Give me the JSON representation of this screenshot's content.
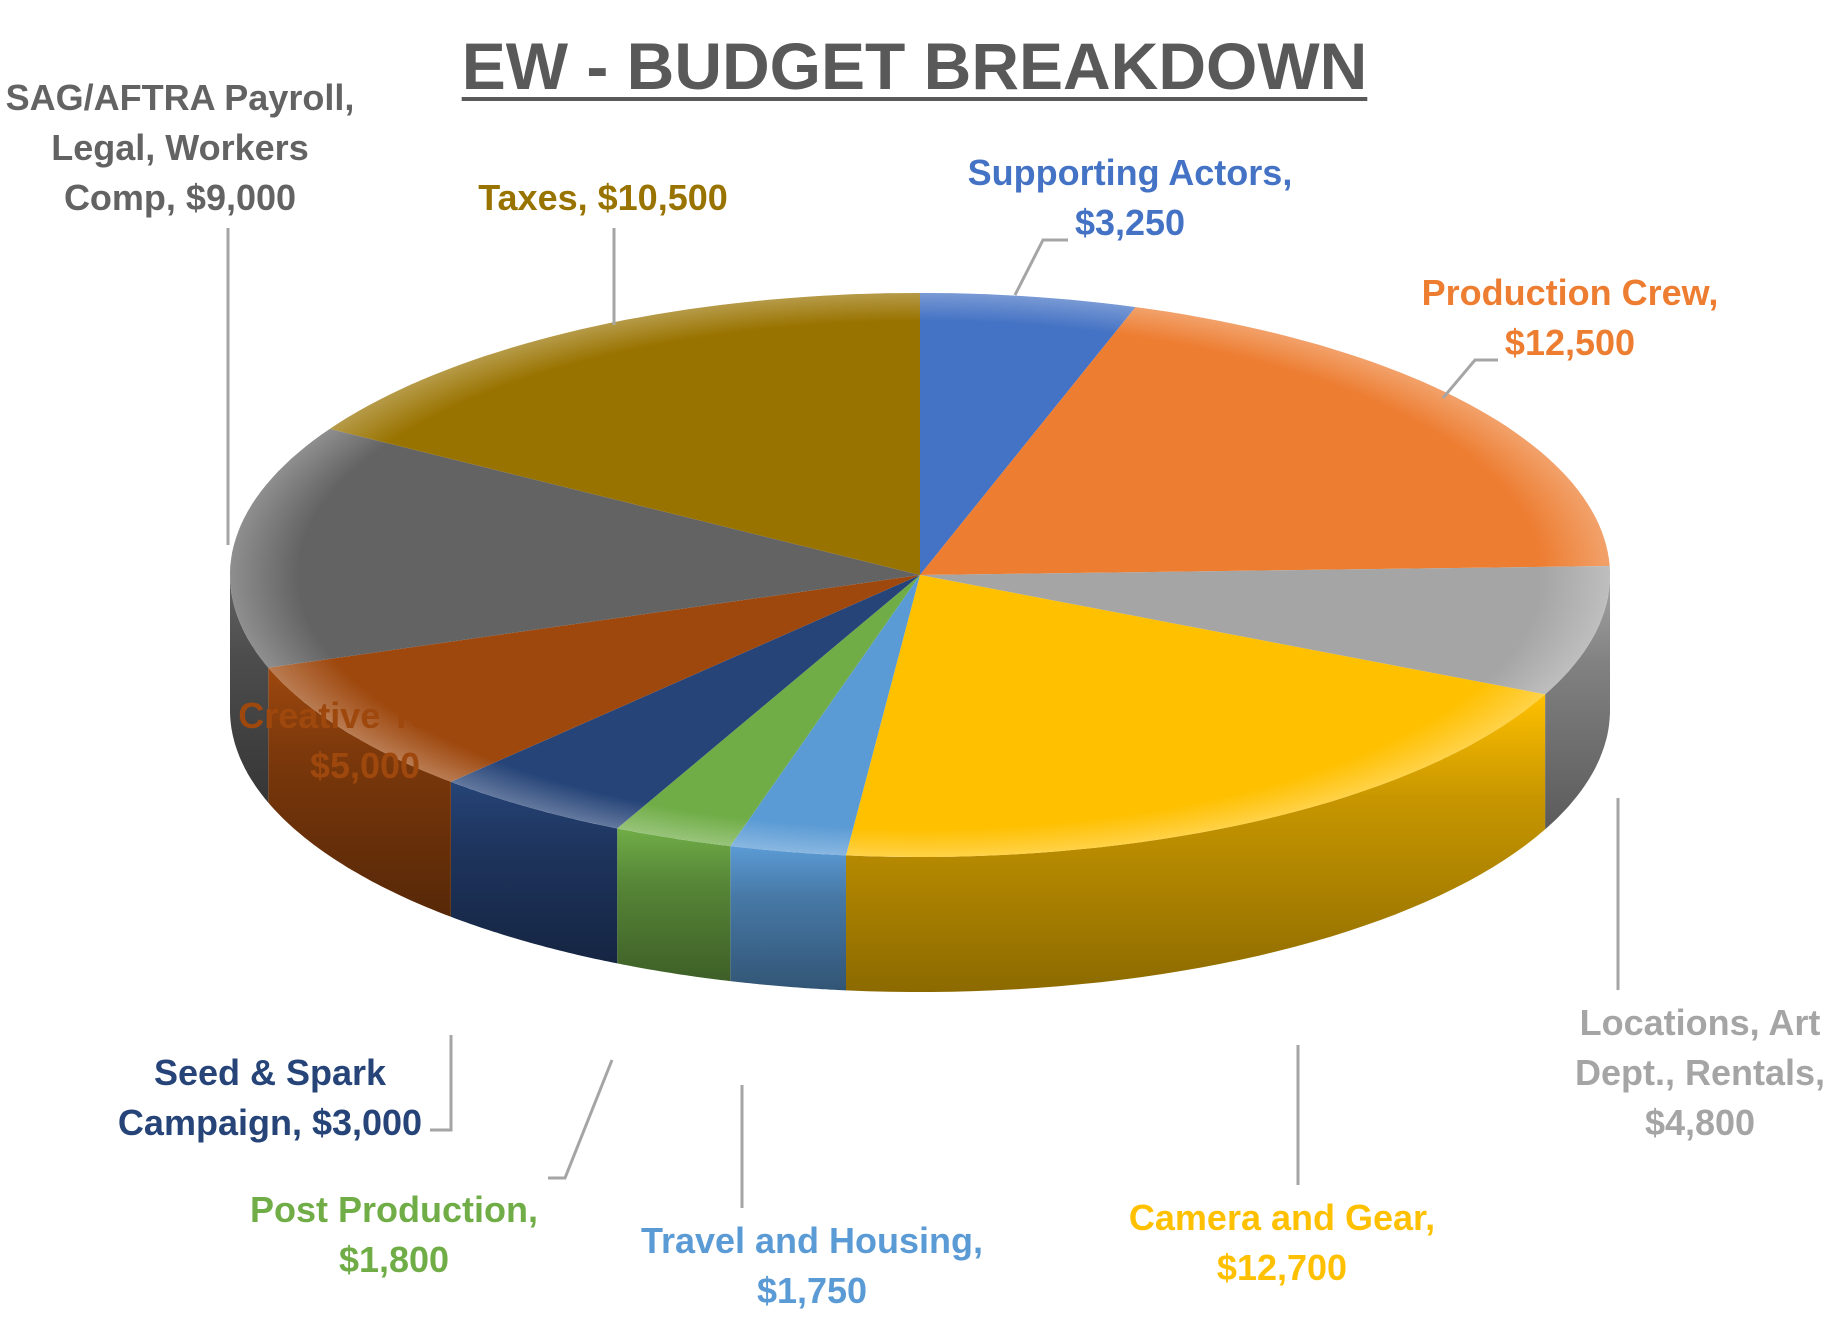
{
  "chart_data": {
    "type": "pie",
    "title": "EW - BUDGET BREAKDOWN",
    "slices": [
      {
        "label": "Supporting Actors",
        "value": 3250,
        "value_text": "$3,250",
        "color": "#4472C4",
        "label_color": "#4472C4"
      },
      {
        "label": "Production Crew",
        "value": 12500,
        "value_text": "$12,500",
        "color": "#ED7D31",
        "label_color": "#ED7D31"
      },
      {
        "label": "Locations, Art Dept., Rentals",
        "value": 4800,
        "value_text": "$4,800",
        "color": "#A5A5A5",
        "label_color": "#A5A5A5"
      },
      {
        "label": "Camera and Gear",
        "value": 12700,
        "value_text": "$12,700",
        "color": "#FFC000",
        "label_color": "#FFC000"
      },
      {
        "label": "Travel and Housing",
        "value": 1750,
        "value_text": "$1,750",
        "color": "#5B9BD5",
        "label_color": "#5B9BD5"
      },
      {
        "label": "Post Production",
        "value": 1800,
        "value_text": "$1,800",
        "color": "#70AD47",
        "label_color": "#70AD47"
      },
      {
        "label": "Seed & Spark Campaign",
        "value": 3000,
        "value_text": "$3,000",
        "color": "#264478",
        "label_color": "#264478"
      },
      {
        "label": "Creative Team",
        "value": 5000,
        "value_text": "$5,000",
        "color": "#9E480E",
        "label_color": "#9E480E"
      },
      {
        "label": "SAG/AFTRA Payroll, Legal, Workers Comp",
        "value": 9000,
        "value_text": "$9,000",
        "color": "#636363",
        "label_color": "#636363"
      },
      {
        "label": "Taxes",
        "value": 10500,
        "value_text": "$10,500",
        "color": "#997300",
        "label_color": "#997300"
      }
    ],
    "label_lines": {
      "Supporting Actors": [
        "Supporting Actors,",
        "$3,250"
      ],
      "Production Crew": [
        "Production Crew,",
        "$12,500"
      ],
      "Locations, Art Dept., Rentals": [
        "Locations, Art",
        "Dept., Rentals,",
        "$4,800"
      ],
      "Camera and Gear": [
        "Camera and Gear,",
        "$12,700"
      ],
      "Travel and Housing": [
        "Travel and Housing,",
        "$1,750"
      ],
      "Post Production": [
        "Post Production,",
        "$1,800"
      ],
      "Seed & Spark Campaign": [
        "Seed & Spark",
        "Campaign, $3,000"
      ],
      "Creative Team": [
        "Creative Team,",
        "$5,000"
      ],
      "SAG/AFTRA Payroll, Legal, Workers Comp": [
        "SAG/AFTRA Payroll,",
        "Legal, Workers",
        "Comp, $9,000"
      ],
      "Taxes": [
        "Taxes, $10,500"
      ]
    },
    "style": "3d-pie",
    "leader_lines": true,
    "leader_color": "#A5A5A5"
  }
}
